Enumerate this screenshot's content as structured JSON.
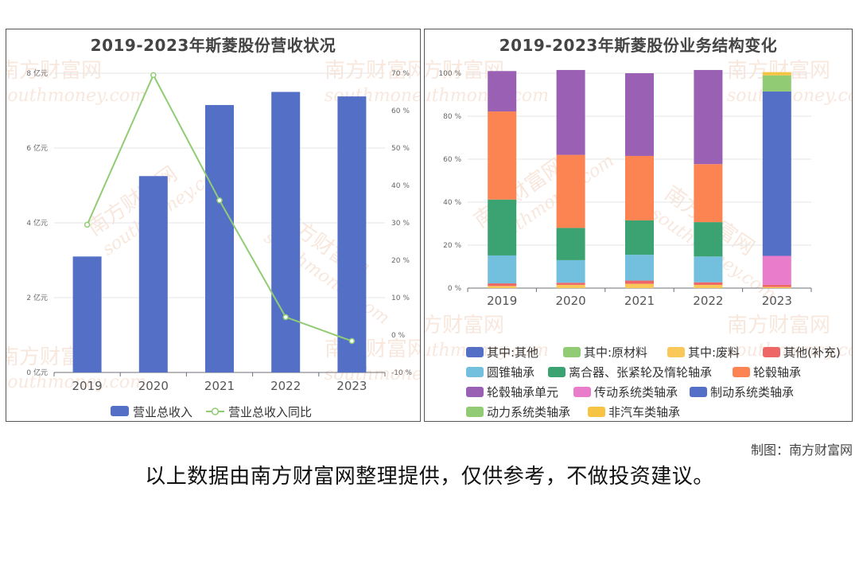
{
  "chart_data": [
    {
      "type": "bar",
      "title": "2019-2023年斯菱股份营收状况",
      "categories": [
        "2019",
        "2020",
        "2021",
        "2022",
        "2023"
      ],
      "y_left": {
        "ticks": [
          "0 亿元",
          "2 亿元",
          "4 亿元",
          "6 亿元",
          "8 亿元"
        ],
        "ylim": [
          0,
          8
        ]
      },
      "y_right": {
        "ticks": [
          "-10 %",
          "0 %",
          "10 %",
          "20 %",
          "30 %",
          "40 %",
          "50 %",
          "60 %",
          "70 %"
        ],
        "ylim": [
          -10,
          70
        ]
      },
      "series": [
        {
          "name": "营业总收入",
          "type": "bar",
          "axis": "left",
          "color": "#5470c6",
          "values": [
            3.1,
            5.25,
            7.15,
            7.5,
            7.38
          ]
        },
        {
          "name": "营业总收入同比",
          "type": "line",
          "axis": "right",
          "color": "#91cc75",
          "values": [
            29.5,
            69.5,
            36.0,
            4.8,
            -1.6
          ]
        }
      ],
      "legend_position": "bottom"
    },
    {
      "type": "bar",
      "stacked": true,
      "title": "2019-2023年斯菱股份业务结构变化",
      "categories": [
        "2019",
        "2020",
        "2021",
        "2022",
        "2023"
      ],
      "y_ticks": [
        "0 %",
        "20 %",
        "40 %",
        "60 %",
        "80 %",
        "100 %"
      ],
      "ylim": [
        0,
        100
      ],
      "series": [
        {
          "name": "其中:其他",
          "color": "#5470c6",
          "values": [
            0,
            0,
            0,
            0,
            0
          ]
        },
        {
          "name": "其中:原材料",
          "color": "#91cc75",
          "values": [
            0,
            0,
            0,
            0,
            0
          ]
        },
        {
          "name": "其中:废料",
          "color": "#fac858",
          "values": [
            0,
            0,
            0,
            0,
            0
          ]
        },
        {
          "name": "其他(补充)",
          "color": "#ee6666",
          "values": [
            1.2,
            1.0,
            1.5,
            1.2,
            1.0
          ]
        },
        {
          "name": "圆锥轴承",
          "color": "#73c0de",
          "values": [
            13.0,
            10.5,
            12.0,
            12.0,
            0
          ]
        },
        {
          "name": "离合器、张紧轮及惰轮轴承",
          "color": "#3ba272",
          "values": [
            26.0,
            15.0,
            16.0,
            16.0,
            0
          ]
        },
        {
          "name": "轮毂轴承",
          "color": "#fc8452",
          "values": [
            41.0,
            34.0,
            30.0,
            27.0,
            0
          ]
        },
        {
          "name": "轮毂轴承单元",
          "color": "#9a60b4",
          "values": [
            18.8,
            39.5,
            38.5,
            43.8,
            0
          ]
        },
        {
          "name": "传动系统类轴承",
          "color": "#ea7ccc",
          "values": [
            0,
            0,
            0,
            0,
            13.5
          ]
        },
        {
          "name": "制动系统类轴承",
          "color": "#5470c6",
          "values": [
            0,
            0,
            0,
            0,
            76.5
          ]
        },
        {
          "name": "动力系统类轴承",
          "color": "#91cc75",
          "values": [
            0,
            0,
            0,
            0,
            7.5
          ]
        },
        {
          "name": "非汽车类轴承",
          "color": "#f6c342",
          "values": [
            0,
            0,
            0,
            0,
            1.5
          ]
        }
      ],
      "small_segments_bottom": [
        {
          "color": "#fac858",
          "values": [
            1.0,
            1.5,
            2.0,
            1.5,
            0.5
          ]
        }
      ],
      "legend_position": "bottom"
    }
  ],
  "watermark": {
    "cn": "南方财富网",
    "en": "southmoney.com"
  },
  "footer": {
    "credit": "制图：南方财富网",
    "disclaimer": "以上数据由南方财富网整理提供，仅供参考，不做投资建议。"
  }
}
